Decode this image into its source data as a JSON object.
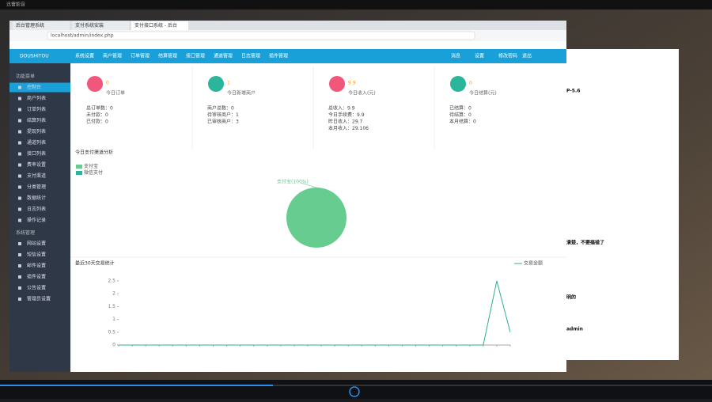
{
  "window_title": "迅雷影音",
  "tabs": [
    "后台管理系统",
    "支付系统安装",
    "支付接口系统 - 后台"
  ],
  "address": "localhost/admin/index.php",
  "header": {
    "logo": "DOUSHITOU",
    "nav": [
      "系统设置",
      "商户管理",
      "订单管理",
      "结算管理",
      "接口管理",
      "通道管理",
      "日志管理",
      "插件管理"
    ],
    "right": [
      "消息",
      "设置",
      "修改密码",
      "退出"
    ]
  },
  "sidebar": {
    "groups": [
      {
        "title": "功能菜单",
        "items": [
          "控制台",
          "商户列表",
          "订单列表",
          "结算列表",
          "提现列表",
          "通道列表",
          "接口列表",
          "费率设置",
          "支付渠道",
          "分类管理",
          "数据统计",
          "日志列表",
          "操作记录"
        ]
      },
      {
        "title": "系统管理",
        "items": [
          "网站设置",
          "短信设置",
          "邮件设置",
          "插件设置",
          "公告设置",
          "管理员设置"
        ]
      }
    ]
  },
  "cards": [
    {
      "value": "0",
      "label": "今日订单",
      "details": [
        "总订单数：0",
        "未付款：0",
        "已付款：0"
      ]
    },
    {
      "value": "1",
      "label": "今日新增商户",
      "details": [
        "商户总数：0",
        "待审核商户：1",
        "已审核商户：3"
      ]
    },
    {
      "value": "9.9",
      "label": "今日收入(元)",
      "details": [
        "总收入：9.9",
        "今日手续费：9.9",
        "昨日收入：29.7",
        "本月收入：29.106"
      ]
    },
    {
      "value": "0",
      "label": "今日结算(元)",
      "details": [
        "已结算：0",
        "待结算：0",
        "本月结算：0"
      ]
    }
  ],
  "pie_panel": {
    "title": "今日支付渠道分析",
    "legend": [
      "支付宝",
      "微信支付"
    ],
    "slice_label": "支付宝(100%)"
  },
  "chart_data": {
    "type": "line",
    "title": "最近30天交易统计",
    "legend": [
      "交易金额"
    ],
    "x": [
      null,
      null,
      null,
      null,
      null,
      null,
      null,
      null,
      null,
      null,
      null,
      null,
      null,
      null,
      null,
      null,
      null,
      null,
      null,
      null,
      null,
      null,
      null,
      null,
      null,
      null,
      null,
      null,
      null,
      null
    ],
    "series": [
      {
        "name": "交易金额",
        "color": "#2fae93",
        "values": [
          0,
          0,
          0,
          0,
          0,
          0,
          0,
          0,
          0,
          0,
          0,
          0,
          0,
          0,
          0,
          0,
          0,
          0,
          0,
          0,
          0,
          0,
          0,
          0,
          0,
          0,
          0,
          0,
          2.5,
          0.5
        ]
      }
    ],
    "ylim": [
      0,
      2.5
    ],
    "yticks": [
      0,
      0.5,
      1,
      1.5,
      2,
      2.5
    ],
    "grid": false
  },
  "document": {
    "lines": [
      "P-5.6",
      "清楚，不要搞错了",
      "明的",
      "admin"
    ]
  }
}
